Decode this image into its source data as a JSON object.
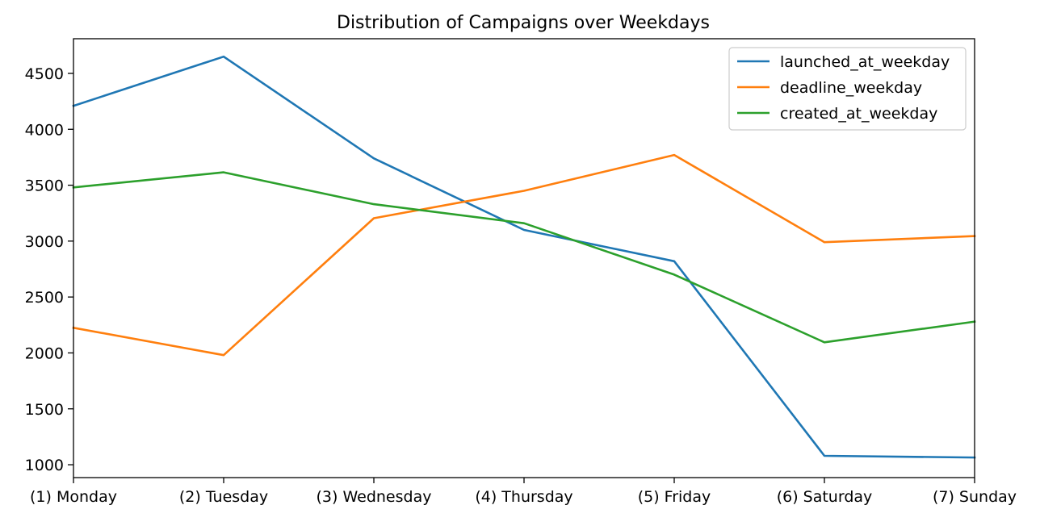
{
  "chart_data": {
    "type": "line",
    "title": "Distribution of Campaigns over Weekdays",
    "xlabel": "",
    "ylabel": "",
    "categories": [
      "(1) Monday",
      "(2) Tuesday",
      "(3) Wednesday",
      "(4) Thursday",
      "(5) Friday",
      "(6) Saturday",
      "(7) Sunday"
    ],
    "ylim": [
      885,
      4810
    ],
    "yticks": [
      1000,
      1500,
      2000,
      2500,
      3000,
      3500,
      4000,
      4500
    ],
    "grid": false,
    "legend_position": "top-right",
    "series": [
      {
        "name": "launched_at_weekday",
        "color": "#1f77b4",
        "values": [
          4210,
          4650,
          3740,
          3100,
          2820,
          1080,
          1065
        ]
      },
      {
        "name": "deadline_weekday",
        "color": "#ff7f0e",
        "values": [
          2225,
          1980,
          3205,
          3450,
          3770,
          2990,
          3045
        ]
      },
      {
        "name": "created_at_weekday",
        "color": "#2ca02c",
        "values": [
          3480,
          3615,
          3330,
          3160,
          2700,
          2095,
          2280
        ]
      }
    ]
  }
}
